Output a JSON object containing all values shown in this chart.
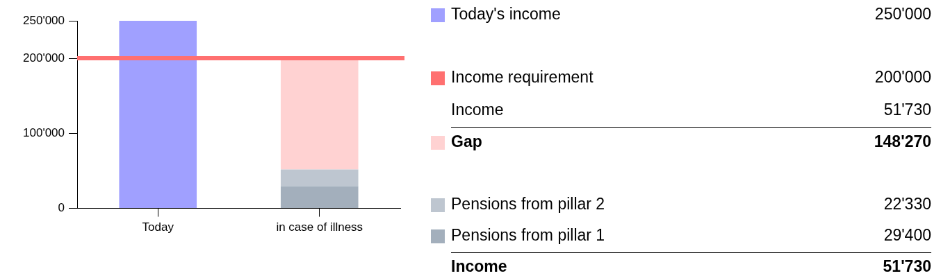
{
  "chart_data": {
    "type": "bar",
    "categories": [
      "Today",
      "in case of illness"
    ],
    "stacked": true,
    "ylim": [
      0,
      250000
    ],
    "yticks": [
      {
        "value": 0,
        "label": "0"
      },
      {
        "value": 100000,
        "label": "100'000"
      },
      {
        "value": 200000,
        "label": "200'000"
      },
      {
        "value": 250000,
        "label": "250'000"
      }
    ],
    "grid": false,
    "legend": "right",
    "series": [
      {
        "name": "Today's income",
        "color": "#a0a0ff",
        "values": [
          250000,
          null
        ]
      },
      {
        "name": "Pensions from pillar 1",
        "color": "#a3afbc",
        "values": [
          null,
          29400
        ]
      },
      {
        "name": "Pensions from pillar 2",
        "color": "#bec6d0",
        "values": [
          null,
          22330
        ]
      },
      {
        "name": "Gap",
        "color": "#ffd2d2",
        "values": [
          null,
          148270
        ]
      }
    ],
    "ref_lines": [
      {
        "axis": "y",
        "value": 200000,
        "label": "Income requirement",
        "color": "#ff7070"
      }
    ],
    "annotations": [
      "250'000",
      "29'400",
      "22'330",
      "148'270",
      "Income",
      "51'730",
      "Income",
      "51'730"
    ]
  }
}
